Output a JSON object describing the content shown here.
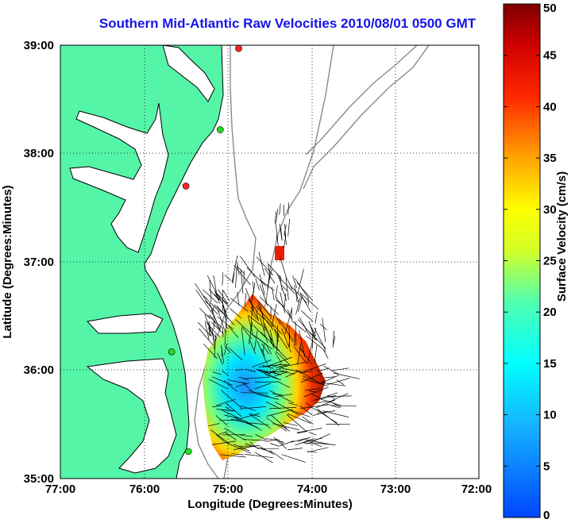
{
  "title": "Southern Mid-Atlantic Raw Velocities 2010/08/01 0500 GMT",
  "map": {
    "xlabel": "Longitude (Degrees:Minutes)",
    "ylabel": "Latitude (Degrees:Minutes)",
    "lon_ticks": [
      "77:00",
      "76:00",
      "75:00",
      "74:00",
      "73:00",
      "72:00"
    ],
    "lat_ticks": [
      "35:00",
      "36:00",
      "37:00",
      "38:00",
      "39:00"
    ],
    "lon_range": [
      -77,
      -72
    ],
    "lat_range": [
      35,
      39
    ],
    "grid": "dotted",
    "land_color": "#55f5a8",
    "coast_color": "#000000",
    "bathymetry_color": "#888888",
    "station_colors": {
      "active": "#22dd22",
      "inactive": "#ff2222"
    },
    "stations": [
      {
        "lon": -74.87,
        "lat": 38.97,
        "status": "inactive"
      },
      {
        "lon": -75.09,
        "lat": 38.22,
        "status": "active"
      },
      {
        "lon": -75.5,
        "lat": 37.7,
        "status": "inactive"
      },
      {
        "lon": -75.67,
        "lat": 36.17,
        "status": "active"
      },
      {
        "lon": -75.47,
        "lat": 35.25,
        "status": "active"
      }
    ]
  },
  "colorbar": {
    "label": "Surface Velocity (cm/s)",
    "ticks": [
      "0",
      "5",
      "10",
      "15",
      "20",
      "25",
      "30",
      "35",
      "40",
      "45",
      "50"
    ],
    "range": [
      0,
      50
    ],
    "colormap": "jet"
  }
}
